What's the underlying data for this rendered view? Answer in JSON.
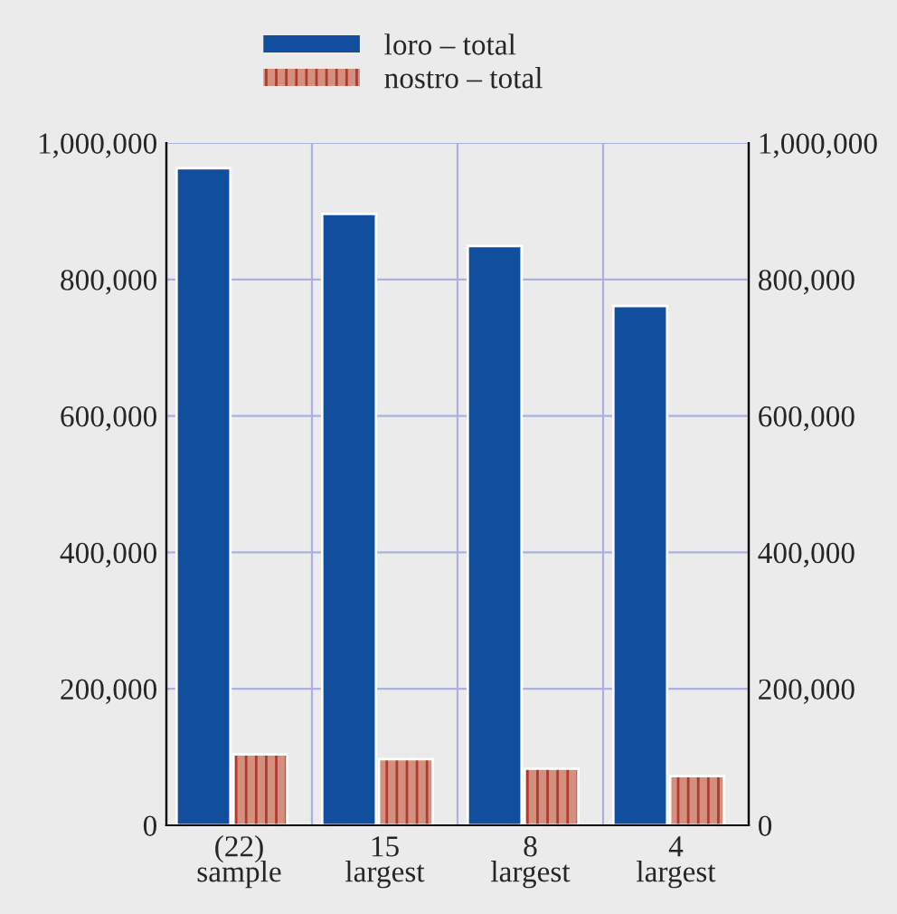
{
  "chart_data": {
    "type": "bar",
    "categories": [
      "(22)\nsample",
      "15\nlargest",
      "8\nlargest",
      "4\nlargest"
    ],
    "series": [
      {
        "name": "loro – total",
        "color": "#114f9e",
        "values": [
          963000,
          896000,
          849000,
          761000
        ]
      },
      {
        "name": "nostro – total",
        "color": "#d4907e",
        "values": [
          104000,
          97000,
          83000,
          72000
        ]
      }
    ],
    "ylim": [
      0,
      1000000
    ],
    "yticks": [
      {
        "value": 0,
        "label": "0"
      },
      {
        "value": 200000,
        "label": "200,000"
      },
      {
        "value": 400000,
        "label": "400,000"
      },
      {
        "value": 600000,
        "label": "600,000"
      },
      {
        "value": 800000,
        "label": "800,000"
      },
      {
        "value": 1000000,
        "label": "1,000,000"
      }
    ],
    "y2lim": [
      0,
      1000000
    ],
    "y2ticks": [
      {
        "value": 0,
        "label": "0"
      },
      {
        "value": 200000,
        "label": "200,000"
      },
      {
        "value": 400000,
        "label": "400,000"
      },
      {
        "value": 600000,
        "label": "600,000"
      },
      {
        "value": 800000,
        "label": "800,000"
      },
      {
        "value": 1000000,
        "label": "1,000,000"
      }
    ],
    "grid": true,
    "legend": "top"
  }
}
